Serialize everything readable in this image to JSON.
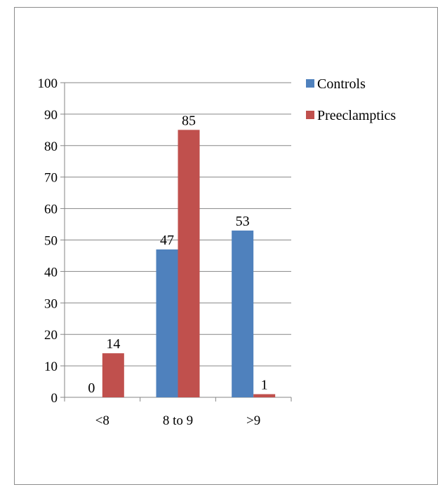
{
  "chart_data": {
    "type": "bar",
    "categories": [
      "<8",
      "8 to 9",
      ">9"
    ],
    "series": [
      {
        "name": "Controls",
        "values": [
          0,
          47,
          53
        ],
        "color": "#4F81BD"
      },
      {
        "name": "Preeclamptics",
        "values": [
          14,
          85,
          1
        ],
        "color": "#C0504D"
      }
    ],
    "ylim": [
      0,
      100
    ],
    "yticks": [
      0,
      10,
      20,
      30,
      40,
      50,
      60,
      70,
      80,
      90,
      100
    ],
    "grid": true,
    "legend": "top-right",
    "data_labels": true
  }
}
